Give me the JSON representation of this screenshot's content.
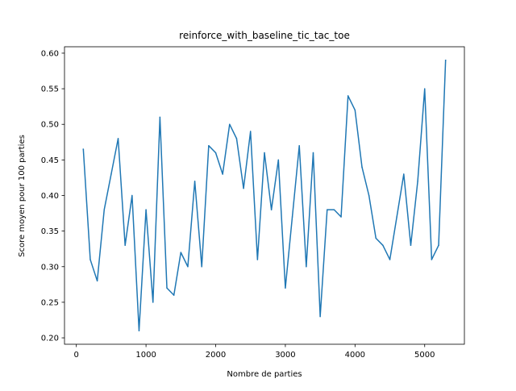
{
  "chart_data": {
    "type": "line",
    "title": "reinforce_with_baseline_tic_tac_toe",
    "xlabel": "Nombre de parties",
    "ylabel": "Score moyen pour 100 parties",
    "xlim": [
      -170,
      5570
    ],
    "ylim": [
      0.191,
      0.609
    ],
    "xticks": [
      0,
      1000,
      2000,
      3000,
      4000,
      5000
    ],
    "xtick_labels": [
      "0",
      "1000",
      "2000",
      "3000",
      "4000",
      "5000"
    ],
    "yticks": [
      0.2,
      0.25,
      0.3,
      0.35,
      0.4,
      0.45,
      0.5,
      0.55,
      0.6
    ],
    "ytick_labels": [
      "0.20",
      "0.25",
      "0.30",
      "0.35",
      "0.40",
      "0.45",
      "0.50",
      "0.55",
      "0.60"
    ],
    "grid": false,
    "legend": "none",
    "line_color": "#1f77b4",
    "series": [
      {
        "x": [
          100,
          200,
          300,
          400,
          500,
          600,
          700,
          800,
          900,
          1000,
          1100,
          1200,
          1300,
          1400,
          1500,
          1600,
          1700,
          1800,
          1900,
          2000,
          2100,
          2200,
          2300,
          2400,
          2500,
          2600,
          2700,
          2800,
          2900,
          3000,
          3100,
          3200,
          3300,
          3400,
          3500,
          3600,
          3700,
          3800,
          3900,
          4000,
          4100,
          4200,
          4300,
          4400,
          4500,
          4600,
          4700,
          4800,
          4900,
          5000,
          5100,
          5200,
          5300
        ],
        "values": [
          0.465,
          0.31,
          0.28,
          0.38,
          0.43,
          0.48,
          0.33,
          0.4,
          0.21,
          0.38,
          0.25,
          0.51,
          0.27,
          0.26,
          0.32,
          0.3,
          0.42,
          0.3,
          0.47,
          0.46,
          0.43,
          0.5,
          0.48,
          0.41,
          0.49,
          0.31,
          0.46,
          0.38,
          0.45,
          0.27,
          0.37,
          0.47,
          0.3,
          0.46,
          0.23,
          0.38,
          0.38,
          0.37,
          0.54,
          0.52,
          0.44,
          0.4,
          0.34,
          0.33,
          0.31,
          0.37,
          0.43,
          0.33,
          0.42,
          0.55,
          0.31,
          0.33,
          0.59
        ]
      }
    ]
  }
}
